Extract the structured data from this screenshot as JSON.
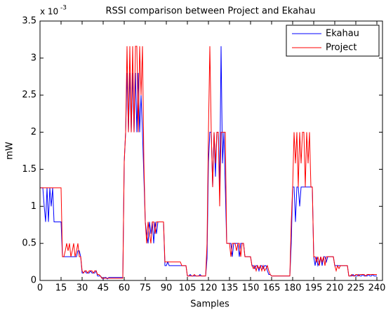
{
  "chart_data": {
    "type": "line",
    "title": "RSSI comparison between Project and Ekahau",
    "x_label": "Samples",
    "y_label": "mW",
    "y_scale_base": "x 10",
    "y_scale_exponent": "-3",
    "legend_position": "upper right",
    "xlim": [
      0,
      244
    ],
    "ylim": [
      0,
      3.5
    ],
    "xticks": [
      0,
      15,
      30,
      45,
      60,
      75,
      90,
      105,
      120,
      135,
      150,
      165,
      180,
      195,
      210,
      225,
      240
    ],
    "yticks": [
      0,
      0.5,
      1,
      1.5,
      2,
      2.5,
      3,
      3.5
    ],
    "x": [
      0,
      1,
      2,
      3,
      4,
      5,
      6,
      7,
      8,
      9,
      10,
      11,
      12,
      13,
      14,
      15,
      16,
      17,
      18,
      19,
      20,
      21,
      22,
      23,
      24,
      25,
      26,
      27,
      28,
      29,
      30,
      31,
      32,
      33,
      34,
      35,
      36,
      37,
      38,
      39,
      40,
      41,
      42,
      43,
      44,
      45,
      46,
      47,
      48,
      49,
      50,
      51,
      52,
      53,
      54,
      55,
      56,
      57,
      58,
      59,
      60,
      61,
      62,
      63,
      64,
      65,
      66,
      67,
      68,
      69,
      70,
      71,
      72,
      73,
      74,
      75,
      76,
      77,
      78,
      79,
      80,
      81,
      82,
      83,
      84,
      85,
      86,
      87,
      88,
      89,
      90,
      91,
      92,
      93,
      94,
      95,
      96,
      97,
      98,
      99,
      100,
      101,
      102,
      103,
      104,
      105,
      106,
      107,
      108,
      109,
      110,
      111,
      112,
      113,
      114,
      115,
      116,
      117,
      118,
      119,
      120,
      121,
      122,
      123,
      124,
      125,
      126,
      127,
      128,
      129,
      130,
      131,
      132,
      133,
      134,
      135,
      136,
      137,
      138,
      139,
      140,
      141,
      142,
      143,
      144,
      145,
      146,
      147,
      148,
      149,
      150,
      151,
      152,
      153,
      154,
      155,
      156,
      157,
      158,
      159,
      160,
      161,
      162,
      163,
      164,
      165,
      166,
      167,
      168,
      169,
      170,
      171,
      172,
      173,
      174,
      175,
      176,
      177,
      178,
      179,
      180,
      181,
      182,
      183,
      184,
      185,
      186,
      187,
      188,
      189,
      190,
      191,
      192,
      193,
      194,
      195,
      196,
      197,
      198,
      199,
      200,
      201,
      202,
      203,
      204,
      205,
      206,
      207,
      208,
      209,
      210,
      211,
      212,
      213,
      214,
      215,
      216,
      217,
      218,
      219,
      220,
      221,
      222,
      223,
      224,
      225,
      226,
      227,
      228,
      229,
      230,
      231,
      232,
      233,
      234,
      235,
      236,
      237,
      238,
      239,
      240
    ],
    "series": [
      {
        "name": "Ekahau",
        "color": "#0000ff",
        "values": [
          1.25,
          1.25,
          1.25,
          1,
          0.79,
          1.25,
          0.79,
          1.25,
          1,
          1.25,
          0.79,
          0.79,
          0.79,
          0.79,
          0.79,
          0.79,
          0.32,
          0.32,
          0.32,
          0.32,
          0.32,
          0.32,
          0.32,
          0.32,
          0.32,
          0.32,
          0.32,
          0.4,
          0.4,
          0.32,
          0.1,
          0.1,
          0.13,
          0.1,
          0.1,
          0.1,
          0.13,
          0.1,
          0.1,
          0.1,
          0.13,
          0.06,
          0.06,
          0.06,
          0.04,
          0.02,
          0.04,
          0.04,
          0.02,
          0.04,
          0.04,
          0.04,
          0.04,
          0.04,
          0.04,
          0.04,
          0.04,
          0.04,
          0.04,
          0.04,
          1.6,
          2,
          2.8,
          2,
          2.8,
          2,
          2.8,
          2,
          2.8,
          2,
          2.8,
          2,
          2.5,
          2,
          1.4,
          0.79,
          0.63,
          0.5,
          0.79,
          0.63,
          0.79,
          0.5,
          0.79,
          0.63,
          0.79,
          0.79,
          0.79,
          0.79,
          0.79,
          0.2,
          0.2,
          0.25,
          0.2,
          0.2,
          0.2,
          0.2,
          0.2,
          0.2,
          0.2,
          0.2,
          0.2,
          0.2,
          0.2,
          0.2,
          0.2,
          0.06,
          0.06,
          0.08,
          0.06,
          0.06,
          0.06,
          0.06,
          0.06,
          0.06,
          0.08,
          0.06,
          0.06,
          0.06,
          0.06,
          0.3,
          1.6,
          2,
          2,
          1.26,
          2,
          1.4,
          2,
          2,
          1.26,
          3.16,
          1.58,
          2,
          1.26,
          0.5,
          0.5,
          0.5,
          0.5,
          0.32,
          0.5,
          0.5,
          0.5,
          0.5,
          0.32,
          0.5,
          0.5,
          0.5,
          0.32,
          0.32,
          0.32,
          0.32,
          0.32,
          0.2,
          0.2,
          0.16,
          0.2,
          0.2,
          0.13,
          0.2,
          0.2,
          0.16,
          0.2,
          0.2,
          0.13,
          0.08,
          0.08,
          0.06,
          0.06,
          0.06,
          0.06,
          0.06,
          0.06,
          0.06,
          0.06,
          0.06,
          0.06,
          0.06,
          0.06,
          0.06,
          0.06,
          0.5,
          1.26,
          1.26,
          0.79,
          1.26,
          1.26,
          1,
          1.26,
          1.26,
          1.26,
          1.26,
          1.26,
          1.26,
          1.26,
          1.26,
          1.26,
          0.32,
          0.2,
          0.32,
          0.2,
          0.25,
          0.32,
          0.2,
          0.32,
          0.32,
          0.25,
          0.32,
          0.32,
          0.32,
          0.32,
          0.32,
          0.2,
          0.2,
          0.2,
          0.2,
          0.2,
          0.2,
          0.2,
          0.2,
          0.2,
          0.2,
          0.06,
          0.06,
          0.06,
          0.08,
          0.06,
          0.06,
          0.06,
          0.08,
          0.06,
          0.06,
          0.08,
          0.06,
          0.06,
          0.06,
          0.08,
          0.06,
          0.06,
          0.08,
          0.06,
          0.06,
          0.06
        ]
      },
      {
        "name": "Project",
        "color": "#ff0000",
        "values": [
          1.25,
          1.25,
          1.25,
          1.25,
          1.25,
          1.25,
          1.25,
          1.25,
          1.25,
          1.25,
          1.25,
          1.25,
          1.25,
          1.25,
          1.25,
          1.25,
          0.32,
          0.32,
          0.4,
          0.5,
          0.4,
          0.5,
          0.32,
          0.4,
          0.5,
          0.32,
          0.4,
          0.5,
          0.32,
          0.32,
          0.13,
          0.1,
          0.13,
          0.13,
          0.1,
          0.13,
          0.13,
          0.13,
          0.1,
          0.13,
          0.13,
          0.08,
          0.08,
          0.06,
          0.03,
          0.03,
          0.03,
          0.03,
          0.03,
          0.03,
          0.03,
          0.03,
          0.03,
          0.03,
          0.03,
          0.03,
          0.03,
          0.03,
          0.03,
          0.03,
          1.6,
          2,
          3.16,
          2,
          3.16,
          2,
          3.16,
          2,
          3.16,
          3.16,
          2,
          3.16,
          2.5,
          3.16,
          1.6,
          0.79,
          0.5,
          0.79,
          0.63,
          0.5,
          0.79,
          0.79,
          0.63,
          0.79,
          0.79,
          0.79,
          0.79,
          0.79,
          0.79,
          0.25,
          0.25,
          0.25,
          0.25,
          0.25,
          0.25,
          0.25,
          0.25,
          0.25,
          0.25,
          0.25,
          0.25,
          0.2,
          0.2,
          0.2,
          0.2,
          0.06,
          0.06,
          0.06,
          0.06,
          0.06,
          0.08,
          0.06,
          0.06,
          0.06,
          0.06,
          0.06,
          0.06,
          0.06,
          0.06,
          0.5,
          2,
          3.16,
          2,
          1.26,
          2,
          1.58,
          2,
          2,
          1,
          2,
          2,
          2,
          2,
          0.5,
          0.5,
          0.5,
          0.32,
          0.5,
          0.5,
          0.5,
          0.4,
          0.5,
          0.5,
          0.32,
          0.5,
          0.5,
          0.32,
          0.32,
          0.32,
          0.32,
          0.32,
          0.2,
          0.16,
          0.2,
          0.13,
          0.2,
          0.16,
          0.2,
          0.13,
          0.2,
          0.13,
          0.16,
          0.2,
          0.13,
          0.08,
          0.06,
          0.06,
          0.06,
          0.06,
          0.06,
          0.06,
          0.06,
          0.06,
          0.06,
          0.06,
          0.06,
          0.06,
          0.06,
          0.06,
          0.79,
          1.26,
          2,
          1.58,
          2,
          1.26,
          2,
          1.58,
          2,
          2,
          1.26,
          2,
          1.58,
          2,
          1.26,
          1.26,
          0.32,
          0.32,
          0.25,
          0.32,
          0.2,
          0.32,
          0.25,
          0.32,
          0.2,
          0.32,
          0.32,
          0.32,
          0.32,
          0.32,
          0.32,
          0.2,
          0.13,
          0.2,
          0.16,
          0.2,
          0.2,
          0.2,
          0.2,
          0.2,
          0.2,
          0.06,
          0.06,
          0.08,
          0.06,
          0.06,
          0.08,
          0.08,
          0.06,
          0.08,
          0.08,
          0.08,
          0.08,
          0.06,
          0.08,
          0.08,
          0.08,
          0.08,
          0.08,
          0.08,
          0.08,
          0.08
        ]
      }
    ]
  }
}
